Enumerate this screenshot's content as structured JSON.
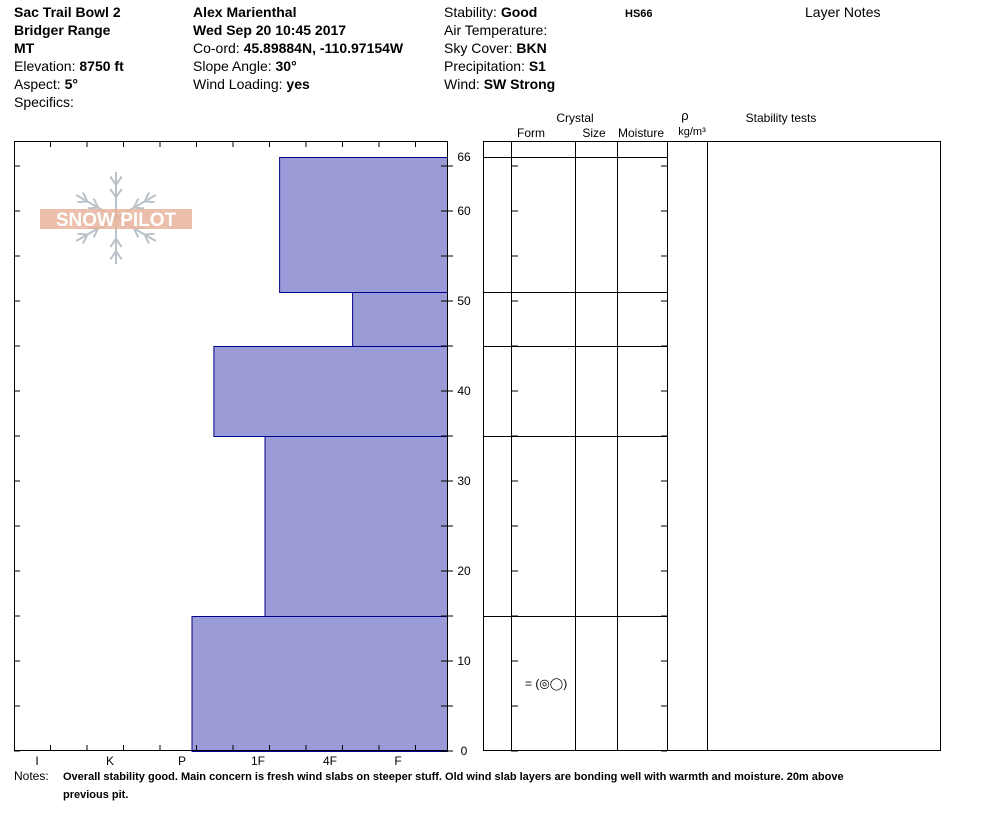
{
  "header": {
    "col1": {
      "location": "Sac Trail Bowl 2",
      "range": "Bridger Range",
      "state": "MT",
      "elevation_label": "Elevation: ",
      "elevation": "8750 ft",
      "aspect_label": "Aspect: ",
      "aspect": "5°",
      "specifics_label": "Specifics:"
    },
    "col2": {
      "observer": "Alex Marienthal",
      "datetime": "Wed Sep 20 10:45 2017",
      "coord_label": "Co-ord: ",
      "coord": "45.89884N, -110.97154W",
      "slope_label": "Slope Angle: ",
      "slope": "30°",
      "wind_loading_label": "Wind Loading: ",
      "wind_loading": "yes"
    },
    "col3": {
      "stability_label": "Stability: ",
      "stability": "Good",
      "air_temp_label": "Air Temperature:",
      "sky_label": "Sky Cover: ",
      "sky": "BKN",
      "precip_label": "Precipitation: ",
      "precip": "S1",
      "wind_label": "Wind: ",
      "wind": "SW Strong"
    },
    "hs": "HS66",
    "layer_notes": "Layer Notes"
  },
  "logo": {
    "text": "SNOW PILOT"
  },
  "columns": {
    "crystal": "Crystal",
    "form": "Form",
    "size": "Size",
    "moisture": "Moisture",
    "rho": "ρ",
    "density_unit": "kg/m³",
    "stability_tests": "Stability tests"
  },
  "notes": {
    "label": "Notes:",
    "line1": "Overall stability good. Main concern is fresh wind slabs on steeper stuff. Old wind slab layers are bonding well with warmth and moisture. 20m above",
    "line2": "previous pit."
  },
  "colors": {
    "layer_fill": "#9b9bd7",
    "layer_stroke": "#00008b",
    "logo": "#e8b49c"
  },
  "chart_data": {
    "type": "bar",
    "title": "",
    "y_axis": {
      "label": "",
      "range": [
        0,
        68
      ],
      "tick_labels": [
        0,
        10,
        20,
        30,
        40,
        50,
        60,
        66
      ]
    },
    "x_axis": {
      "label": "",
      "tick_labels": [
        "I",
        "K",
        "P",
        "1F",
        "4F",
        "F"
      ],
      "note": "hand hardness, increasing to the left"
    },
    "layers": [
      {
        "bottom": 0,
        "top": 15,
        "hardness": "P",
        "hardness_value": 3.5
      },
      {
        "bottom": 15,
        "top": 35,
        "hardness": "1F",
        "hardness_value": 2.5
      },
      {
        "bottom": 35,
        "top": 45,
        "hardness": "1F+",
        "hardness_value": 3.2
      },
      {
        "bottom": 45,
        "top": 51,
        "hardness": "4F-",
        "hardness_value": 1.3
      },
      {
        "bottom": 51,
        "top": 66,
        "hardness": "1F-",
        "hardness_value": 2.3
      }
    ],
    "layer_boundaries": [
      15,
      35,
      45,
      51,
      66
    ],
    "crystal_annotation": {
      "depth": 7.5,
      "text": "= (◎◯)"
    }
  }
}
